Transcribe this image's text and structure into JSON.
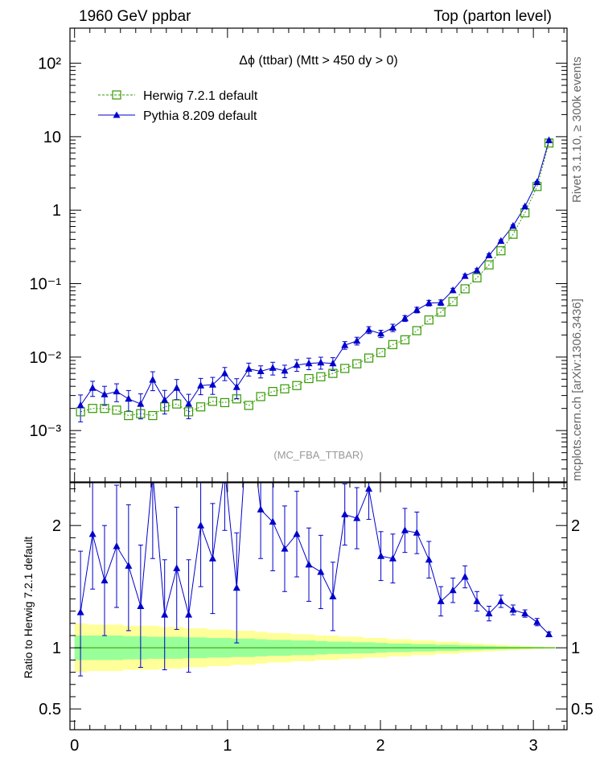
{
  "header": {
    "left": "1960 GeV ppbar",
    "right": "Top (parton level)"
  },
  "side_labels": {
    "rivet": "Rivet 3.1.10, ≥ 300k events",
    "mcplots": "mcplots.cern.ch [arXiv:1306.3436]"
  },
  "analysis_id": "(MC_FBA_TTBAR)",
  "chart_data": [
    {
      "type": "line",
      "title": "Δϕ (ttbar) (Mtt > 450 dy > 0)",
      "xlabel": "",
      "ylabel": "",
      "log_y": true,
      "xlim": [
        -0.03,
        3.22
      ],
      "ylim": [
        0.0002,
        300
      ],
      "ytick_labels": [
        "10⁻³",
        "10⁻²",
        "10⁻¹",
        "1",
        "10",
        "10²"
      ],
      "xtick_labels": [
        "0",
        "1",
        "2",
        "3"
      ],
      "legend_position": "top-left",
      "x": [
        0.039,
        0.118,
        0.196,
        0.275,
        0.353,
        0.432,
        0.511,
        0.589,
        0.668,
        0.746,
        0.825,
        0.903,
        0.982,
        1.06,
        1.139,
        1.217,
        1.296,
        1.374,
        1.453,
        1.532,
        1.61,
        1.689,
        1.767,
        1.846,
        1.924,
        2.003,
        2.081,
        2.16,
        2.238,
        2.317,
        2.395,
        2.474,
        2.553,
        2.631,
        2.71,
        2.788,
        2.867,
        2.945,
        3.024,
        3.102
      ],
      "series": [
        {
          "name": "Herwig 7.2.1 default",
          "color": "#339900",
          "marker": "open-square",
          "line": "dotted",
          "values": [
            0.0018,
            0.002,
            0.002,
            0.0019,
            0.0016,
            0.0017,
            0.0016,
            0.0021,
            0.0023,
            0.0018,
            0.0021,
            0.0025,
            0.0024,
            0.0027,
            0.0022,
            0.0029,
            0.0034,
            0.0037,
            0.0041,
            0.0051,
            0.0054,
            0.006,
            0.007,
            0.0081,
            0.0097,
            0.0115,
            0.0148,
            0.0172,
            0.0229,
            0.032,
            0.041,
            0.057,
            0.085,
            0.12,
            0.18,
            0.28,
            0.47,
            0.92,
            2.1,
            8.2
          ]
        },
        {
          "name": "Pythia 8.209 default",
          "color": "#0000cc",
          "marker": "filled-triangle",
          "line": "solid",
          "values": [
            0.0022,
            0.0038,
            0.0031,
            0.0034,
            0.0027,
            0.0023,
            0.0049,
            0.0026,
            0.0038,
            0.0023,
            0.0041,
            0.0042,
            0.006,
            0.0039,
            0.0069,
            0.0064,
            0.0071,
            0.0065,
            0.0078,
            0.0082,
            0.0084,
            0.0082,
            0.0145,
            0.0166,
            0.0234,
            0.0208,
            0.0251,
            0.0336,
            0.0438,
            0.0544,
            0.0552,
            0.0809,
            0.1267,
            0.1513,
            0.2423,
            0.38,
            0.61,
            1.12,
            2.4,
            8.9
          ]
        }
      ]
    },
    {
      "type": "line",
      "title": "",
      "xlabel": "",
      "ylabel": "Ratio to Herwig 7.2.1 default",
      "xlim": [
        -0.03,
        3.22
      ],
      "ylim": [
        0.33,
        2.35
      ],
      "ytick_labels": [
        "0.5",
        "1",
        "2"
      ],
      "xtick_labels": [
        "0",
        "1",
        "2",
        "3"
      ],
      "reference_line": 1,
      "x": [
        0.039,
        0.118,
        0.196,
        0.275,
        0.353,
        0.432,
        0.511,
        0.589,
        0.668,
        0.746,
        0.825,
        0.903,
        0.982,
        1.06,
        1.139,
        1.217,
        1.296,
        1.374,
        1.453,
        1.532,
        1.61,
        1.689,
        1.767,
        1.846,
        1.924,
        2.003,
        2.081,
        2.16,
        2.238,
        2.317,
        2.395,
        2.474,
        2.553,
        2.631,
        2.71,
        2.788,
        2.867,
        2.945,
        3.024,
        3.102
      ],
      "series": [
        {
          "name": "Pythia 8.209 default",
          "color": "#0000cc",
          "marker": "filled-triangle",
          "values": [
            1.29,
            1.93,
            1.55,
            1.83,
            1.67,
            1.34,
            2.43,
            1.27,
            1.65,
            1.27,
            2.0,
            1.73,
            2.46,
            1.49,
            3.0,
            2.13,
            2.03,
            1.81,
            1.93,
            1.68,
            1.62,
            1.42,
            2.09,
            2.06,
            2.3,
            1.75,
            1.73,
            1.96,
            1.94,
            1.72,
            1.38,
            1.47,
            1.58,
            1.38,
            1.28,
            1.38,
            1.31,
            1.28,
            1.21,
            1.11
          ],
          "error_up": [
            0.5,
            0.45,
            0.45,
            0.5,
            0.5,
            0.5,
            0.7,
            0.45,
            0.5,
            0.45,
            0.5,
            0.45,
            0.5,
            0.45,
            0.6,
            0.4,
            0.4,
            0.35,
            0.35,
            0.3,
            0.3,
            0.28,
            0.25,
            0.25,
            0.25,
            0.2,
            0.2,
            0.18,
            0.17,
            0.15,
            0.12,
            0.1,
            0.09,
            0.08,
            0.06,
            0.05,
            0.04,
            0.03,
            0.03,
            0.02
          ],
          "error_down": [
            0.52,
            0.45,
            0.45,
            0.5,
            0.53,
            0.5,
            0.7,
            0.45,
            0.5,
            0.47,
            0.5,
            0.45,
            0.5,
            0.45,
            0.6,
            0.4,
            0.4,
            0.35,
            0.35,
            0.3,
            0.3,
            0.28,
            0.25,
            0.25,
            0.25,
            0.2,
            0.2,
            0.18,
            0.17,
            0.15,
            0.12,
            0.1,
            0.09,
            0.08,
            0.06,
            0.05,
            0.04,
            0.03,
            0.03,
            0.02
          ]
        }
      ],
      "bands": [
        {
          "color": "#ffff99",
          "half_width": [
            0.2,
            0.19,
            0.19,
            0.19,
            0.18,
            0.18,
            0.18,
            0.17,
            0.17,
            0.16,
            0.16,
            0.15,
            0.15,
            0.14,
            0.14,
            0.13,
            0.12,
            0.12,
            0.11,
            0.11,
            0.1,
            0.1,
            0.09,
            0.09,
            0.08,
            0.08,
            0.07,
            0.07,
            0.06,
            0.06,
            0.05,
            0.05,
            0.04,
            0.035,
            0.03,
            0.025,
            0.02,
            0.015,
            0.01,
            0.007
          ]
        },
        {
          "color": "#99ff99",
          "half_width": [
            0.1,
            0.1,
            0.1,
            0.1,
            0.095,
            0.095,
            0.09,
            0.09,
            0.09,
            0.085,
            0.085,
            0.08,
            0.08,
            0.075,
            0.075,
            0.07,
            0.065,
            0.065,
            0.06,
            0.06,
            0.055,
            0.05,
            0.05,
            0.045,
            0.045,
            0.04,
            0.035,
            0.035,
            0.03,
            0.03,
            0.025,
            0.025,
            0.02,
            0.018,
            0.015,
            0.012,
            0.01,
            0.008,
            0.006,
            0.004
          ]
        }
      ]
    }
  ]
}
